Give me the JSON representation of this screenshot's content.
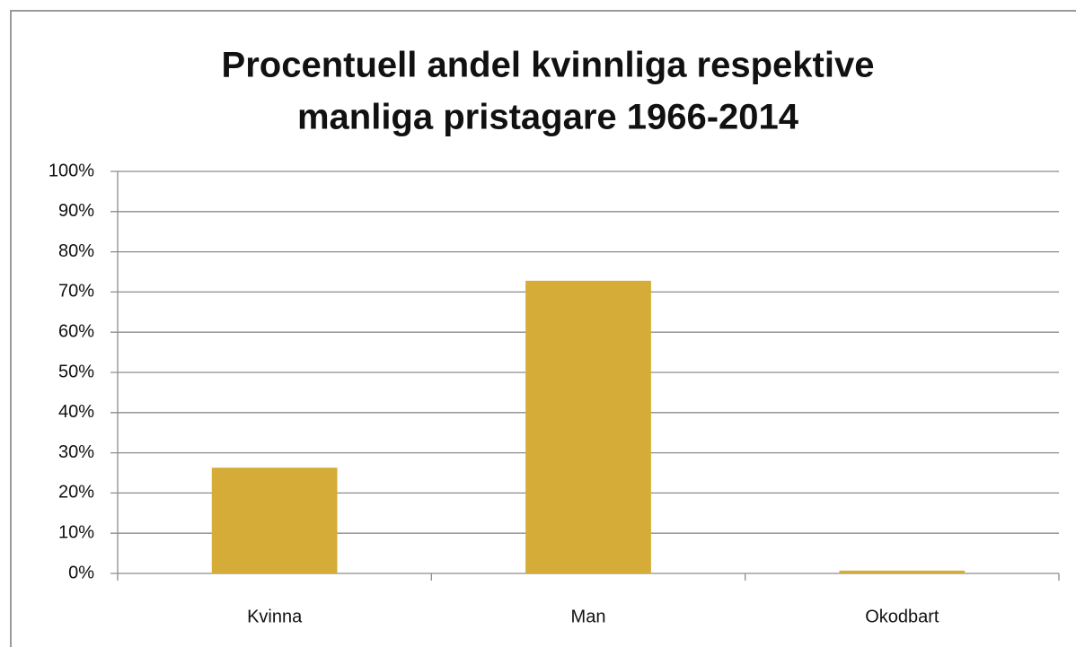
{
  "chart_data": {
    "type": "bar",
    "title": [
      "Procentuell andel kvinnliga respektive",
      "manliga pristagare 1966-2014"
    ],
    "categories": [
      "Kvinna",
      "Man",
      "Okodbart"
    ],
    "values": [
      26.3,
      72.8,
      0.7
    ],
    "color": "#d4ac37",
    "ylim": [
      0,
      100
    ],
    "yticks": [
      {
        "value": 0,
        "label": "0%"
      },
      {
        "value": 10,
        "label": "10%"
      },
      {
        "value": 20,
        "label": "20%"
      },
      {
        "value": 30,
        "label": "30%"
      },
      {
        "value": 40,
        "label": "40%"
      },
      {
        "value": 50,
        "label": "50%"
      },
      {
        "value": 60,
        "label": "60%"
      },
      {
        "value": 70,
        "label": "70%"
      },
      {
        "value": 80,
        "label": "80%"
      },
      {
        "value": 90,
        "label": "90%"
      },
      {
        "value": 100,
        "label": "100%"
      }
    ],
    "grid": true
  }
}
